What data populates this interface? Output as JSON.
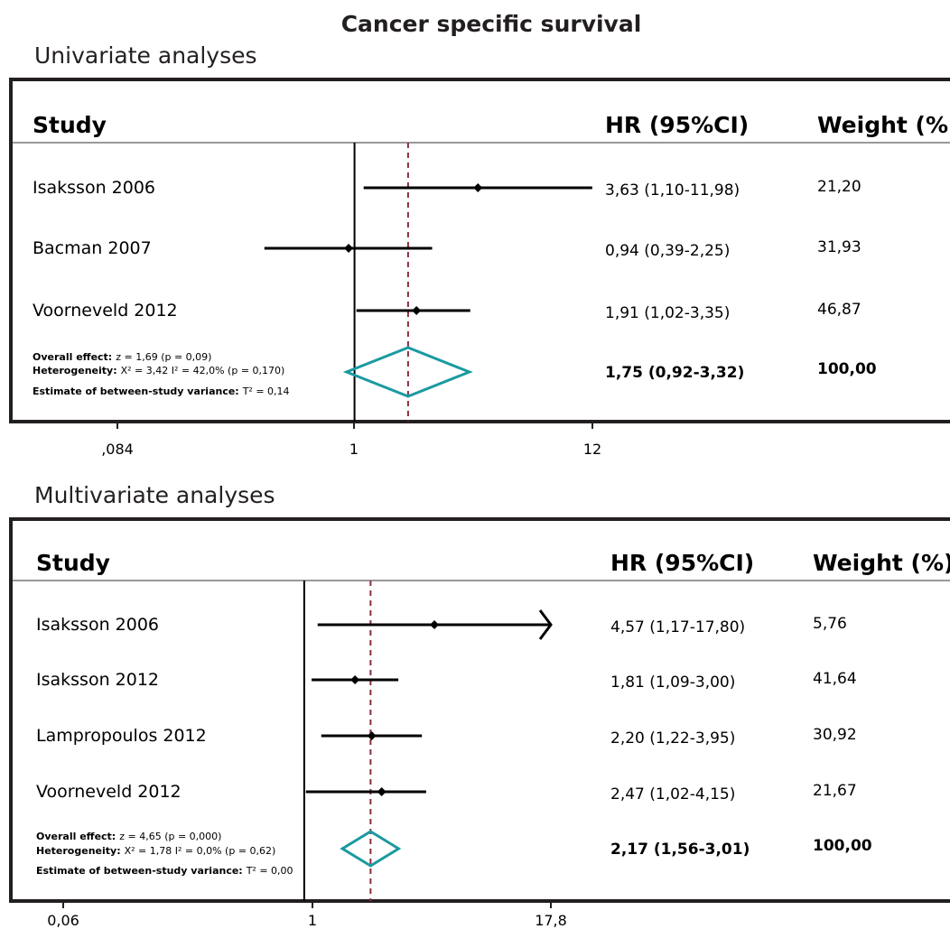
{
  "title": "Cancer specific survival",
  "chart_data": [
    {
      "type": "forest",
      "panel_title": "Univariate analyses",
      "columns": {
        "study": "Study",
        "hr": "HR (95%CI)",
        "weight": "Weight (%)"
      },
      "x_scale": "log",
      "xlim": [
        0.084,
        12
      ],
      "x_ticks": [
        ",084",
        "1",
        "12"
      ],
      "null_line": 1,
      "studies": [
        {
          "name": "Isaksson 2006",
          "hr": 3.63,
          "lo": 1.1,
          "hi": 11.98,
          "hr_text": "3,63 (1,10-11,98)",
          "weight": "21,20"
        },
        {
          "name": "Bacman 2007",
          "hr": 0.94,
          "lo": 0.39,
          "hi": 2.25,
          "hr_text": "0,94 (0,39-2,25)",
          "weight": "31,93"
        },
        {
          "name": "Voorneveld 2012",
          "hr": 1.91,
          "lo": 1.02,
          "hi": 3.35,
          "hr_text": "1,91 (1,02-3,35)",
          "weight": "46,87"
        }
      ],
      "overall": {
        "hr": 1.75,
        "lo": 0.92,
        "hi": 3.32,
        "hr_text": "1,75 (0,92-3,32)",
        "weight": "100,00",
        "effect_label": "Overall effect:",
        "effect_text": "z = 1,69  (p = 0,09)",
        "het_label": "Heterogeneity:",
        "het_text": "X² = 3,42  I² = 42,0% (p = 0,170)",
        "var_label": "Estimate of between-study variance:",
        "var_text": "T² = 0,14"
      },
      "colors": {
        "diamond": "#1a9aa0",
        "dashed": "#8b2e3a",
        "line": "#000000"
      }
    },
    {
      "type": "forest",
      "panel_title": "Multivariate analyses",
      "columns": {
        "study": "Study",
        "hr": "HR (95%CI)",
        "weight": "Weight (%)"
      },
      "x_scale": "log",
      "xlim": [
        0.06,
        17.8
      ],
      "x_ticks": [
        "0,06",
        "1",
        "17,8"
      ],
      "null_line": 1,
      "studies": [
        {
          "name": "Isaksson 2006",
          "hr": 4.57,
          "lo": 1.17,
          "hi": 17.8,
          "hr_text": "4,57 (1,17-17,80)",
          "weight": "5,76",
          "arrow": true
        },
        {
          "name": "Isaksson 2012",
          "hr": 1.81,
          "lo": 1.09,
          "hi": 3.0,
          "hr_text": "1,81 (1,09-3,00)",
          "weight": "41,64"
        },
        {
          "name": "Lampropoulos 2012",
          "hr": 2.2,
          "lo": 1.22,
          "hi": 3.95,
          "hr_text": "2,20 (1,22-3,95)",
          "weight": "30,92"
        },
        {
          "name": "Voorneveld 2012",
          "hr": 2.47,
          "lo": 1.02,
          "hi": 4.15,
          "hr_text": "2,47 (1,02-4,15)",
          "weight": "21,67"
        }
      ],
      "overall": {
        "hr": 2.17,
        "lo": 1.56,
        "hi": 3.01,
        "hr_text": "2,17 (1,56-3,01)",
        "weight": "100,00",
        "effect_label": "Overall  effect:",
        "effect_text": "z = 4,65  (p = 0,000)",
        "het_label": "Heterogeneity:",
        "het_text": "X² = 1,78  I² = 0,0% (p = 0,62)",
        "var_label": "Estimate of between-study variance:",
        "var_text": "T² = 0,00"
      },
      "colors": {
        "diamond": "#1a9aa0",
        "dashed": "#8b2e3a",
        "line": "#000000"
      }
    }
  ]
}
